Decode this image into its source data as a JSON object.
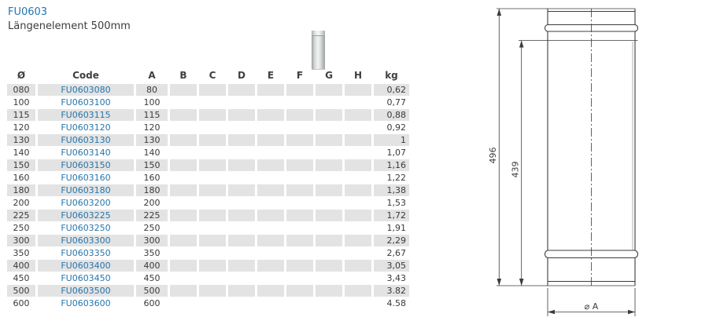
{
  "header": {
    "title": "FU0603",
    "subtitle": "Längenelement 500mm"
  },
  "thumbnail": {
    "kind": "pipe-cylinder"
  },
  "table": {
    "columns": [
      "Ø",
      "Code",
      "A",
      "B",
      "C",
      "D",
      "E",
      "F",
      "G",
      "H",
      "kg"
    ],
    "rows": [
      [
        "080",
        "FU0603080",
        "80",
        "",
        "",
        "",
        "",
        "",
        "",
        "",
        "0,62"
      ],
      [
        "100",
        "FU0603100",
        "100",
        "",
        "",
        "",
        "",
        "",
        "",
        "",
        "0,77"
      ],
      [
        "115",
        "FU0603115",
        "115",
        "",
        "",
        "",
        "",
        "",
        "",
        "",
        "0,88"
      ],
      [
        "120",
        "FU0603120",
        "120",
        "",
        "",
        "",
        "",
        "",
        "",
        "",
        "0,92"
      ],
      [
        "130",
        "FU0603130",
        "130",
        "",
        "",
        "",
        "",
        "",
        "",
        "",
        "1"
      ],
      [
        "140",
        "FU0603140",
        "140",
        "",
        "",
        "",
        "",
        "",
        "",
        "",
        "1,07"
      ],
      [
        "150",
        "FU0603150",
        "150",
        "",
        "",
        "",
        "",
        "",
        "",
        "",
        "1,16"
      ],
      [
        "160",
        "FU0603160",
        "160",
        "",
        "",
        "",
        "",
        "",
        "",
        "",
        "1,22"
      ],
      [
        "180",
        "FU0603180",
        "180",
        "",
        "",
        "",
        "",
        "",
        "",
        "",
        "1,38"
      ],
      [
        "200",
        "FU0603200",
        "200",
        "",
        "",
        "",
        "",
        "",
        "",
        "",
        "1,53"
      ],
      [
        "225",
        "FU0603225",
        "225",
        "",
        "",
        "",
        "",
        "",
        "",
        "",
        "1,72"
      ],
      [
        "250",
        "FU0603250",
        "250",
        "",
        "",
        "",
        "",
        "",
        "",
        "",
        "1,91"
      ],
      [
        "300",
        "FU0603300",
        "300",
        "",
        "",
        "",
        "",
        "",
        "",
        "",
        "2,29"
      ],
      [
        "350",
        "FU0603350",
        "350",
        "",
        "",
        "",
        "",
        "",
        "",
        "",
        "2,67"
      ],
      [
        "400",
        "FU0603400",
        "400",
        "",
        "",
        "",
        "",
        "",
        "",
        "",
        "3,05"
      ],
      [
        "450",
        "FU0603450",
        "450",
        "",
        "",
        "",
        "",
        "",
        "",
        "",
        "3,43"
      ],
      [
        "500",
        "FU0603500",
        "500",
        "",
        "",
        "",
        "",
        "",
        "",
        "",
        "3.82"
      ],
      [
        "600",
        "FU0603600",
        "600",
        "",
        "",
        "",
        "",
        "",
        "",
        "",
        "4.58"
      ]
    ]
  },
  "drawing": {
    "outer_height": "496",
    "inner_height": "439",
    "diameter_label": "⌀ A"
  },
  "colors": {
    "link_blue": "#2575ac",
    "row_stripe": "#e3e3e3",
    "drawing_line": "#3c3c3c"
  }
}
